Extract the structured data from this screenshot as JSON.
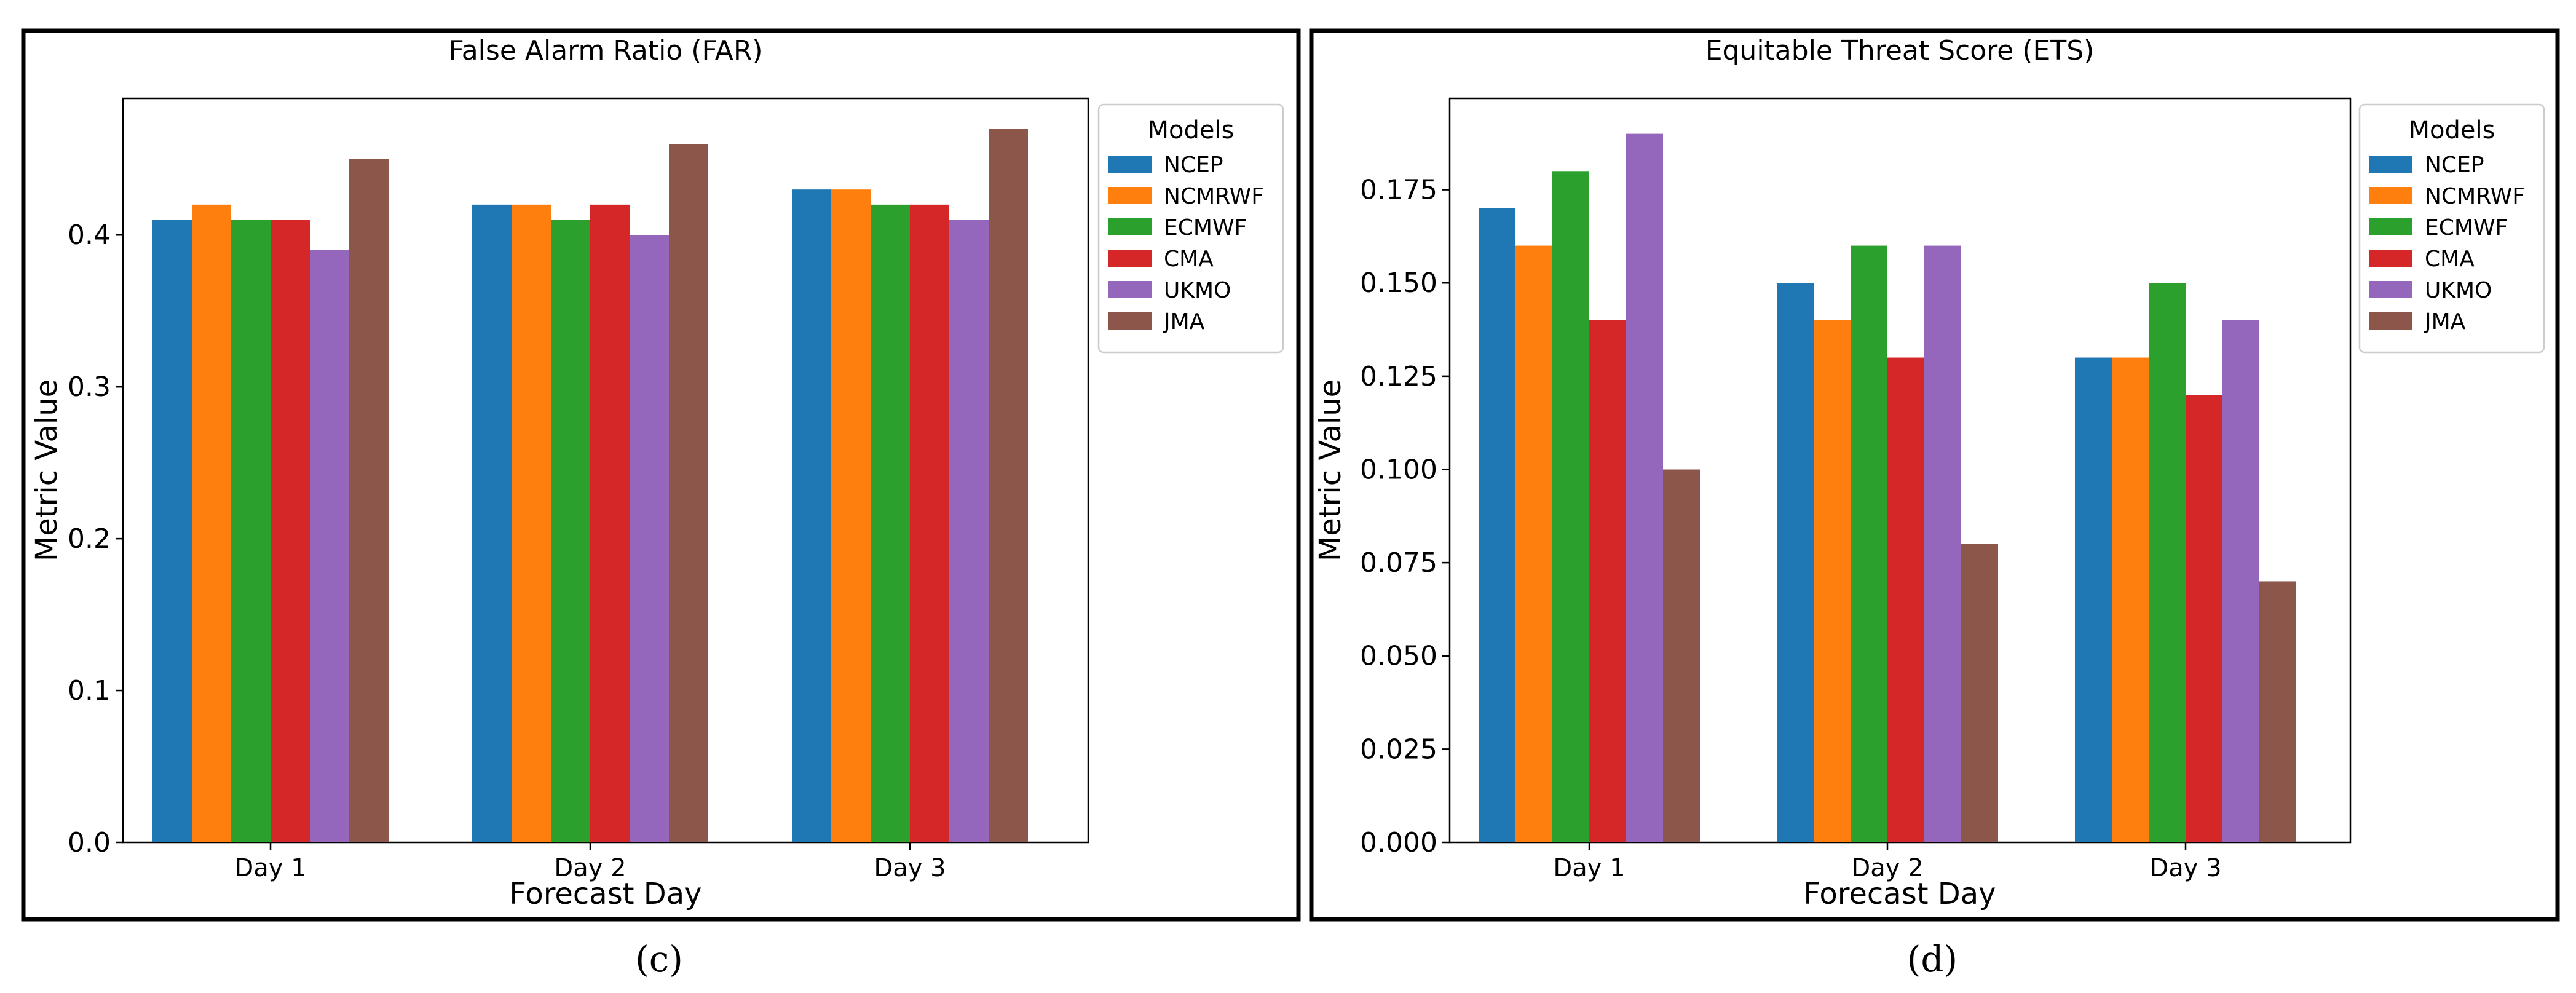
{
  "colors": {
    "NCEP": "#1f77b4",
    "NCMRWF": "#ff7f0e",
    "ECMWF": "#2ca02c",
    "CMA": "#d62728",
    "UKMO": "#9467bd",
    "JMA": "#8c564b"
  },
  "chart_data": [
    {
      "type": "bar",
      "panel_label": "(c)",
      "title": "False Alarm Ratio (FAR)",
      "xlabel": "Forecast Day",
      "ylabel": "Metric Value",
      "categories": [
        "Day 1",
        "Day 2",
        "Day 3"
      ],
      "ylim": [
        0,
        0.49
      ],
      "yticks": [
        0.0,
        0.1,
        0.2,
        0.3,
        0.4
      ],
      "ytick_labels": [
        "0.0",
        "0.1",
        "0.2",
        "0.3",
        "0.4"
      ],
      "legend_title": "Models",
      "legend_position": "top-right outside",
      "series": [
        {
          "name": "NCEP",
          "values": [
            0.41,
            0.42,
            0.43
          ]
        },
        {
          "name": "NCMRWF",
          "values": [
            0.42,
            0.42,
            0.43
          ]
        },
        {
          "name": "ECMWF",
          "values": [
            0.41,
            0.41,
            0.42
          ]
        },
        {
          "name": "CMA",
          "values": [
            0.41,
            0.42,
            0.42
          ]
        },
        {
          "name": "UKMO",
          "values": [
            0.39,
            0.4,
            0.41
          ]
        },
        {
          "name": "JMA",
          "values": [
            0.45,
            0.46,
            0.47
          ]
        }
      ]
    },
    {
      "type": "bar",
      "panel_label": "(d)",
      "title": "Equitable Threat Score (ETS)",
      "xlabel": "Forecast Day",
      "ylabel": "Metric Value",
      "categories": [
        "Day 1",
        "Day 2",
        "Day 3"
      ],
      "ylim": [
        0,
        0.1995
      ],
      "yticks": [
        0.0,
        0.025,
        0.05,
        0.075,
        0.1,
        0.125,
        0.15,
        0.175
      ],
      "ytick_labels": [
        "0.000",
        "0.025",
        "0.050",
        "0.075",
        "0.100",
        "0.125",
        "0.150",
        "0.175"
      ],
      "legend_title": "Models",
      "legend_position": "top-right outside",
      "series": [
        {
          "name": "NCEP",
          "values": [
            0.17,
            0.15,
            0.13
          ]
        },
        {
          "name": "NCMRWF",
          "values": [
            0.16,
            0.14,
            0.13
          ]
        },
        {
          "name": "ECMWF",
          "values": [
            0.18,
            0.16,
            0.15
          ]
        },
        {
          "name": "CMA",
          "values": [
            0.14,
            0.13,
            0.12
          ]
        },
        {
          "name": "UKMO",
          "values": [
            0.19,
            0.16,
            0.14
          ]
        },
        {
          "name": "JMA",
          "values": [
            0.1,
            0.08,
            0.07
          ]
        }
      ]
    }
  ]
}
